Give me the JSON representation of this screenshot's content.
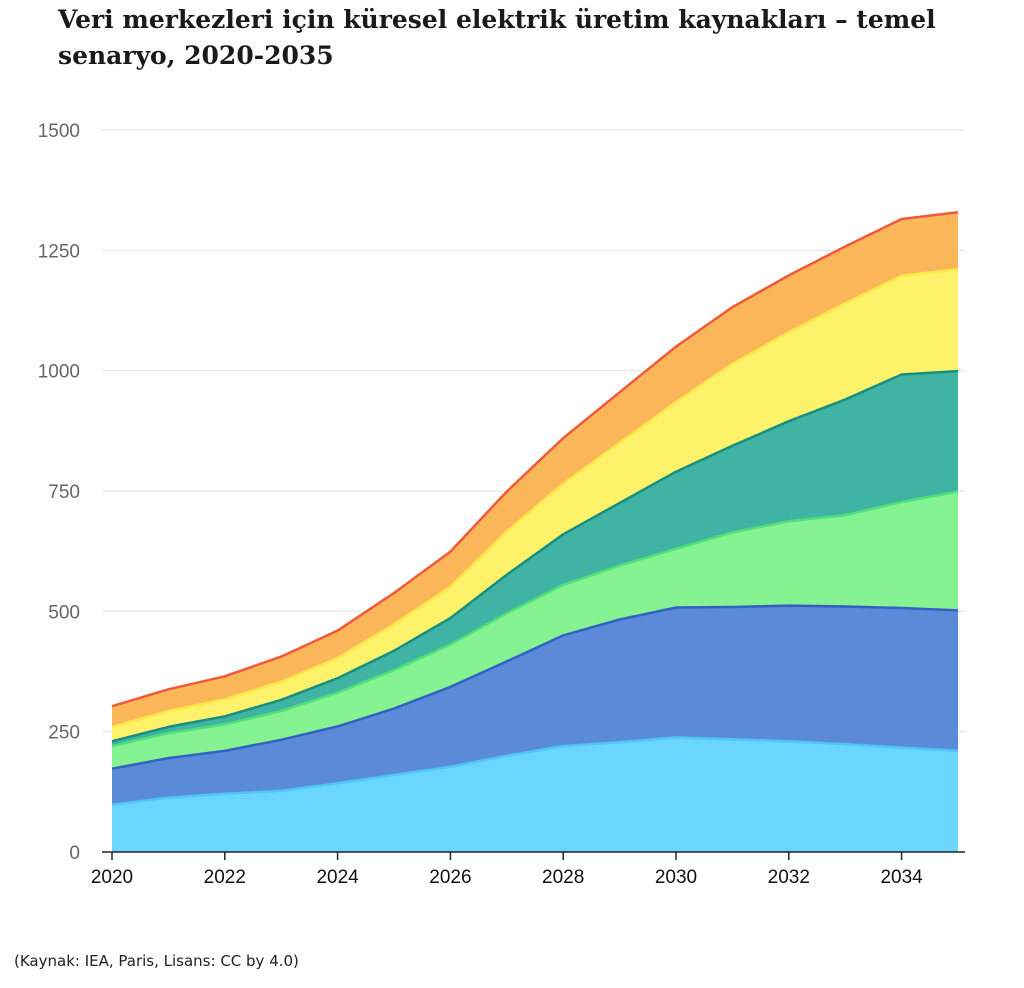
{
  "title": "Veri merkezleri için küresel elektrik üretim kaynakları – temel senaryo, 2020-2035",
  "source": "(Kaynak: IEA, Paris, Lisans: CC by 4.0)",
  "chart_data": {
    "type": "area",
    "stacked": true,
    "title": "Veri merkezleri için küresel elektrik üretim kaynakları – temel senaryo, 2020-2035",
    "xlabel": "",
    "ylabel": "",
    "x": [
      2020,
      2021,
      2022,
      2023,
      2024,
      2025,
      2026,
      2027,
      2028,
      2029,
      2030,
      2031,
      2032,
      2033,
      2034,
      2035
    ],
    "xlim": [
      2020,
      2035
    ],
    "ylim": [
      0,
      1500
    ],
    "x_ticks": [
      "2020",
      "2022",
      "2024",
      "2026",
      "2028",
      "2030",
      "2032",
      "2034"
    ],
    "y_ticks": [
      "0",
      "250",
      "500",
      "750",
      "1000",
      "1250",
      "1500"
    ],
    "grid": true,
    "legend": "none",
    "series": [
      {
        "fill": "#6ad6fe",
        "stroke": "#4fc6f5",
        "values": [
          98,
          113,
          121,
          127,
          143,
          160,
          177,
          200,
          220,
          228,
          238,
          234,
          230,
          224,
          217,
          210
        ]
      },
      {
        "fill": "#5b8bd8",
        "stroke": "#3361c2",
        "values": [
          75,
          82,
          89,
          106,
          118,
          138,
          166,
          196,
          230,
          255,
          270,
          275,
          282,
          286,
          290,
          292
        ]
      },
      {
        "fill": "#86f393",
        "stroke": "#4fe07a",
        "values": [
          47,
          52,
          55,
          60,
          70,
          80,
          88,
          100,
          105,
          112,
          122,
          155,
          175,
          190,
          220,
          247
        ]
      },
      {
        "fill": "#40b3a4",
        "stroke": "#168f7e",
        "values": [
          10,
          13,
          17,
          23,
          30,
          40,
          55,
          80,
          105,
          130,
          160,
          180,
          208,
          240,
          265,
          250
        ]
      },
      {
        "fill": "#fdf26a",
        "stroke": "#fbe848",
        "values": [
          30,
          33,
          35,
          38,
          42,
          55,
          65,
          90,
          105,
          125,
          145,
          170,
          185,
          200,
          205,
          212
        ]
      },
      {
        "fill": "#fbb65a",
        "stroke": "#f8a53b",
        "values": [
          43,
          45,
          48,
          52,
          57,
          65,
          73,
          83,
          95,
          105,
          115,
          118,
          118,
          118,
          118,
          118
        ]
      }
    ],
    "top_line_color": "#ee5a3b"
  }
}
